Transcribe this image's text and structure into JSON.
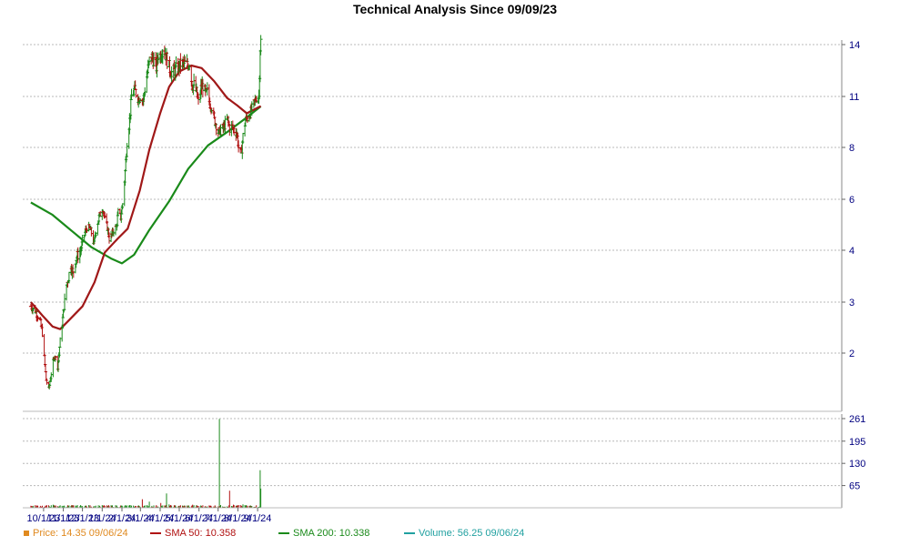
{
  "chart_data": {
    "type": "stock",
    "title": "Technical Analysis Since 09/09/23",
    "x_tick_labels": [
      "10/1/23",
      "11/1/23",
      "12/1/23",
      "1/1/24",
      "2/1/24",
      "3/1/24",
      "4/1/24",
      "5/1/24",
      "6/1/24",
      "7/1/24",
      "8/1/24",
      "9/1/24"
    ],
    "price_y_ticks": [
      2,
      3,
      4,
      6,
      8,
      11,
      14
    ],
    "volume_y_ticks": [
      65,
      130,
      195,
      261
    ],
    "price_scale": "log",
    "price_ylim": [
      1.0,
      14.0
    ],
    "volume_ylim": [
      0,
      261
    ],
    "grid": true,
    "legend_placement": "bottom",
    "colors": {
      "price_up": "#1a8a1a",
      "price_down": "#b01010",
      "sma50": "#a01818",
      "sma200": "#1a8a1a",
      "legend_price": "#e08a20",
      "legend_sma50": "#b01010",
      "legend_volume": "#20a0a0",
      "tick_text": "#000080",
      "legend_text": "#c0504d"
    },
    "legend": {
      "price": "Price: 14.35  09/06/24",
      "sma50": "SMA 50: 10.358",
      "sma200": "SMA 200: 10.338",
      "volume": "Volume: 56.25  09/06/24"
    },
    "price_close_path": [
      [
        "2023-09-11",
        2.9
      ],
      [
        "2023-09-18",
        2.8
      ],
      [
        "2023-09-25",
        2.6
      ],
      [
        "2023-09-29",
        2.35
      ],
      [
        "2023-10-02",
        1.9
      ],
      [
        "2023-10-05",
        1.45
      ],
      [
        "2023-10-09",
        1.3
      ],
      [
        "2023-10-12",
        1.5
      ],
      [
        "2023-10-16",
        1.8
      ],
      [
        "2023-10-19",
        1.95
      ],
      [
        "2023-10-23",
        1.7
      ],
      [
        "2023-10-26",
        2.1
      ],
      [
        "2023-10-30",
        2.5
      ],
      [
        "2023-11-02",
        2.9
      ],
      [
        "2023-11-06",
        3.3
      ],
      [
        "2023-11-09",
        3.45
      ],
      [
        "2023-11-13",
        3.7
      ],
      [
        "2023-11-16",
        3.5
      ],
      [
        "2023-11-20",
        3.8
      ],
      [
        "2023-11-24",
        3.9
      ],
      [
        "2023-11-28",
        4.0
      ],
      [
        "2023-12-01",
        4.3
      ],
      [
        "2023-12-05",
        4.6
      ],
      [
        "2023-12-08",
        4.8
      ],
      [
        "2023-12-12",
        4.75
      ],
      [
        "2023-12-15",
        4.6
      ],
      [
        "2023-12-19",
        4.2
      ],
      [
        "2023-12-22",
        4.7
      ],
      [
        "2023-12-27",
        5.2
      ],
      [
        "2024-01-02",
        5.6
      ],
      [
        "2024-01-05",
        5.1
      ],
      [
        "2024-01-09",
        4.8
      ],
      [
        "2024-01-12",
        4.4
      ],
      [
        "2024-01-16",
        4.5
      ],
      [
        "2024-01-19",
        4.7
      ],
      [
        "2024-01-23",
        4.8
      ],
      [
        "2024-01-26",
        5.4
      ],
      [
        "2024-01-30",
        5.2
      ],
      [
        "2024-02-02",
        5.8
      ],
      [
        "2024-02-06",
        7.0
      ],
      [
        "2024-02-09",
        8.3
      ],
      [
        "2024-02-13",
        9.5
      ],
      [
        "2024-02-16",
        11.0
      ],
      [
        "2024-02-20",
        11.3
      ],
      [
        "2024-02-23",
        11.2
      ],
      [
        "2024-02-27",
        10.8
      ],
      [
        "2024-03-01",
        11.0
      ],
      [
        "2024-03-05",
        10.7
      ],
      [
        "2024-03-08",
        11.4
      ],
      [
        "2024-03-12",
        12.3
      ],
      [
        "2024-03-15",
        13.0
      ],
      [
        "2024-03-19",
        13.2
      ],
      [
        "2024-03-22",
        13.0
      ],
      [
        "2024-03-26",
        12.6
      ],
      [
        "2024-03-29",
        13.4
      ],
      [
        "2024-04-02",
        13.3
      ],
      [
        "2024-04-05",
        13.8
      ],
      [
        "2024-04-09",
        13.5
      ],
      [
        "2024-04-12",
        13.0
      ],
      [
        "2024-04-16",
        12.5
      ],
      [
        "2024-04-19",
        12.3
      ],
      [
        "2024-04-23",
        12.4
      ],
      [
        "2024-04-26",
        12.5
      ],
      [
        "2024-04-30",
        12.6
      ],
      [
        "2024-05-03",
        12.8
      ],
      [
        "2024-05-07",
        12.8
      ],
      [
        "2024-05-10",
        12.8
      ],
      [
        "2024-05-14",
        12.7
      ],
      [
        "2024-05-17",
        12.9
      ],
      [
        "2024-05-21",
        11.6
      ],
      [
        "2024-05-24",
        11.6
      ],
      [
        "2024-05-28",
        11.2
      ],
      [
        "2024-05-31",
        10.6
      ],
      [
        "2024-06-04",
        11.4
      ],
      [
        "2024-06-07",
        11.6
      ],
      [
        "2024-06-11",
        11.1
      ],
      [
        "2024-06-14",
        11.2
      ],
      [
        "2024-06-18",
        10.5
      ],
      [
        "2024-06-21",
        10.3
      ],
      [
        "2024-06-25",
        9.5
      ],
      [
        "2024-06-28",
        9.2
      ],
      [
        "2024-07-02",
        8.7
      ],
      [
        "2024-07-05",
        9.0
      ],
      [
        "2024-07-09",
        9.0
      ],
      [
        "2024-07-12",
        9.3
      ],
      [
        "2024-07-16",
        9.5
      ],
      [
        "2024-07-19",
        9.0
      ],
      [
        "2024-07-23",
        9.1
      ],
      [
        "2024-07-26",
        8.9
      ],
      [
        "2024-07-30",
        8.8
      ],
      [
        "2024-08-02",
        8.0
      ],
      [
        "2024-08-06",
        7.7
      ],
      [
        "2024-08-09",
        8.6
      ],
      [
        "2024-08-13",
        9.5
      ],
      [
        "2024-08-16",
        9.6
      ],
      [
        "2024-08-20",
        9.9
      ],
      [
        "2024-08-23",
        10.2
      ],
      [
        "2024-08-27",
        10.6
      ],
      [
        "2024-08-30",
        10.9
      ],
      [
        "2024-09-03",
        11.0
      ],
      [
        "2024-09-05",
        13.8
      ],
      [
        "2024-09-06",
        14.35
      ]
    ],
    "sma50_path": [
      [
        "2023-09-11",
        3.0
      ],
      [
        "2023-09-29",
        2.7
      ],
      [
        "2023-10-15",
        2.47
      ],
      [
        "2023-10-27",
        2.42
      ],
      [
        "2023-11-10",
        2.6
      ],
      [
        "2023-12-01",
        2.9
      ],
      [
        "2023-12-20",
        3.35
      ],
      [
        "2024-01-05",
        3.95
      ],
      [
        "2024-01-25",
        4.38
      ],
      [
        "2024-02-10",
        4.75
      ],
      [
        "2024-02-29",
        6.3
      ],
      [
        "2024-03-15",
        7.9
      ],
      [
        "2024-04-01",
        9.9
      ],
      [
        "2024-04-15",
        11.5
      ],
      [
        "2024-05-01",
        12.35
      ],
      [
        "2024-05-20",
        12.7
      ],
      [
        "2024-06-05",
        12.55
      ],
      [
        "2024-06-25",
        11.8
      ],
      [
        "2024-07-15",
        10.9
      ],
      [
        "2024-07-31",
        10.4
      ],
      [
        "2024-08-15",
        9.9
      ],
      [
        "2024-09-06",
        10.358
      ]
    ],
    "sma200_path": [
      [
        "2023-09-11",
        5.85
      ],
      [
        "2023-10-15",
        5.3
      ],
      [
        "2023-11-15",
        4.65
      ],
      [
        "2023-12-15",
        4.1
      ],
      [
        "2024-01-15",
        3.82
      ],
      [
        "2024-02-01",
        3.72
      ],
      [
        "2024-02-20",
        3.9
      ],
      [
        "2024-03-15",
        4.7
      ],
      [
        "2024-04-15",
        5.9
      ],
      [
        "2024-05-15",
        7.1
      ],
      [
        "2024-06-15",
        8.1
      ],
      [
        "2024-07-15",
        8.8
      ],
      [
        "2024-08-15",
        9.65
      ],
      [
        "2024-09-06",
        10.338
      ]
    ],
    "volume_spikes": [
      [
        "2023-09-12",
        5
      ],
      [
        "2023-10-02",
        3
      ],
      [
        "2023-10-16",
        9
      ],
      [
        "2023-11-01",
        5
      ],
      [
        "2023-12-01",
        5
      ],
      [
        "2024-02-05",
        4
      ],
      [
        "2024-03-04",
        25
      ],
      [
        "2024-03-15",
        18
      ],
      [
        "2024-04-02",
        14
      ],
      [
        "2024-04-11",
        42
      ],
      [
        "2024-04-15",
        10
      ],
      [
        "2024-05-01",
        6
      ],
      [
        "2024-05-22",
        9
      ],
      [
        "2024-06-01",
        7
      ],
      [
        "2024-06-14",
        4
      ],
      [
        "2024-07-03",
        260
      ],
      [
        "2024-07-19",
        50
      ],
      [
        "2024-07-25",
        9
      ],
      [
        "2024-08-05",
        8
      ],
      [
        "2024-08-09",
        10
      ],
      [
        "2024-09-05",
        110
      ],
      [
        "2024-09-06",
        56.25
      ]
    ]
  }
}
